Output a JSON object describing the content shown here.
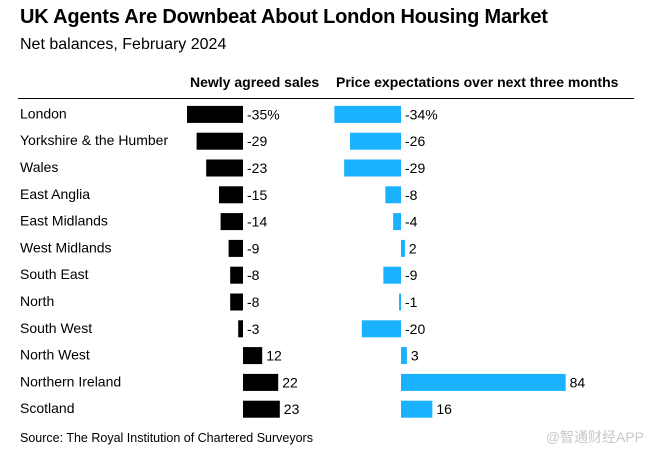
{
  "chart_data": {
    "type": "bar",
    "title": "UK Agents Are Downbeat About London Housing Market",
    "subtitle": "Net balances, February 2024",
    "categories": [
      "London",
      "Yorkshire & the Humber",
      "Wales",
      "East Anglia",
      "East Midlands",
      "West Midlands",
      "South East",
      "North",
      "South West",
      "North West",
      "Northern Ireland",
      "Scotland"
    ],
    "series": [
      {
        "name": "Newly agreed sales",
        "values": [
          -35,
          -29,
          -23,
          -15,
          -14,
          -9,
          -8,
          -8,
          -3,
          12,
          22,
          23
        ],
        "labels": [
          "-35%",
          "-29",
          "-23",
          "-15",
          "-14",
          "-9",
          "-8",
          "-8",
          "-3",
          "12",
          "22",
          "23"
        ],
        "color": "#000000"
      },
      {
        "name": "Price expectations over next three months",
        "values": [
          -34,
          -26,
          -29,
          -8,
          -4,
          2,
          -9,
          -1,
          -20,
          3,
          84,
          16
        ],
        "labels": [
          "-34%",
          "-26",
          "-29",
          "-8",
          "-4",
          "2",
          "-9",
          "-1",
          "-20",
          "3",
          "84",
          "16"
        ],
        "color": "#1ab2ff"
      }
    ],
    "source": "Source: The Royal Institution of Chartered Surveyors"
  },
  "watermark": "@智通财经APP"
}
